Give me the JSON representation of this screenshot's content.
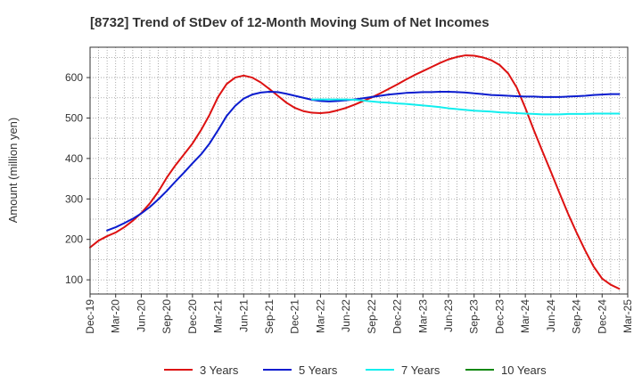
{
  "chart_data": {
    "type": "line",
    "title": "[8732]  Trend of StDev of 12-Month Moving Sum of Net Incomes",
    "ylabel": "Amount (million yen)",
    "xlabel": "",
    "ylim": [
      65,
      675
    ],
    "yticks": [
      100,
      200,
      300,
      400,
      500,
      600
    ],
    "x_tick_labels": [
      "Dec-19",
      "Mar-20",
      "Jun-20",
      "Sep-20",
      "Dec-20",
      "Mar-21",
      "Jun-21",
      "Sep-21",
      "Dec-21",
      "Mar-22",
      "Jun-22",
      "Sep-22",
      "Dec-22",
      "Mar-23",
      "Jun-23",
      "Sep-23",
      "Dec-23",
      "Mar-24",
      "Jun-24",
      "Sep-24",
      "Dec-24",
      "Mar-25"
    ],
    "grid": true,
    "legend_position": "bottom",
    "series": [
      {
        "name": "3 Years",
        "color": "#dd1111",
        "points": [
          [
            "Dec-19",
            180
          ],
          [
            "Jan-20",
            197
          ],
          [
            "Feb-20",
            208
          ],
          [
            "Mar-20",
            217
          ],
          [
            "Apr-20",
            230
          ],
          [
            "May-20",
            246
          ],
          [
            "Jun-20",
            265
          ],
          [
            "Jul-20",
            289
          ],
          [
            "Aug-20",
            318
          ],
          [
            "Sep-20",
            353
          ],
          [
            "Oct-20",
            383
          ],
          [
            "Nov-20",
            410
          ],
          [
            "Dec-20",
            437
          ],
          [
            "Jan-21",
            470
          ],
          [
            "Feb-21",
            508
          ],
          [
            "Mar-21",
            552
          ],
          [
            "Apr-21",
            584
          ],
          [
            "May-21",
            600
          ],
          [
            "Jun-21",
            605
          ],
          [
            "Jul-21",
            600
          ],
          [
            "Aug-21",
            588
          ],
          [
            "Sep-21",
            572
          ],
          [
            "Oct-21",
            555
          ],
          [
            "Nov-21",
            538
          ],
          [
            "Dec-21",
            525
          ],
          [
            "Jan-22",
            517
          ],
          [
            "Feb-22",
            513
          ],
          [
            "Mar-22",
            512
          ],
          [
            "Apr-22",
            514
          ],
          [
            "May-22",
            519
          ],
          [
            "Jun-22",
            525
          ],
          [
            "Jul-22",
            533
          ],
          [
            "Aug-22",
            542
          ],
          [
            "Sep-22",
            551
          ],
          [
            "Oct-22",
            561
          ],
          [
            "Nov-22",
            572
          ],
          [
            "Dec-22",
            583
          ],
          [
            "Jan-23",
            595
          ],
          [
            "Feb-23",
            606
          ],
          [
            "Mar-23",
            616
          ],
          [
            "Apr-23",
            626
          ],
          [
            "May-23",
            636
          ],
          [
            "Jun-23",
            645
          ],
          [
            "Jul-23",
            651
          ],
          [
            "Aug-23",
            655
          ],
          [
            "Sep-23",
            654
          ],
          [
            "Oct-23",
            650
          ],
          [
            "Nov-23",
            643
          ],
          [
            "Dec-23",
            631
          ],
          [
            "Jan-24",
            610
          ],
          [
            "Feb-24",
            575
          ],
          [
            "Mar-24",
            525
          ],
          [
            "Apr-24",
            470
          ],
          [
            "May-24",
            418
          ],
          [
            "Jun-24",
            367
          ],
          [
            "Jul-24",
            315
          ],
          [
            "Aug-24",
            264
          ],
          [
            "Sep-24",
            217
          ],
          [
            "Oct-24",
            173
          ],
          [
            "Nov-24",
            133
          ],
          [
            "Dec-24",
            103
          ],
          [
            "Jan-25",
            88
          ],
          [
            "Feb-25",
            78
          ]
        ]
      },
      {
        "name": "5 Years",
        "color": "#0b1ccf",
        "points": [
          [
            "Feb-20",
            222
          ],
          [
            "Mar-20",
            230
          ],
          [
            "Apr-20",
            240
          ],
          [
            "May-20",
            251
          ],
          [
            "Jun-20",
            264
          ],
          [
            "Jul-20",
            280
          ],
          [
            "Aug-20",
            299
          ],
          [
            "Sep-20",
            320
          ],
          [
            "Oct-20",
            343
          ],
          [
            "Nov-20",
            365
          ],
          [
            "Dec-20",
            388
          ],
          [
            "Jan-21",
            410
          ],
          [
            "Feb-21",
            437
          ],
          [
            "Mar-21",
            470
          ],
          [
            "Apr-21",
            505
          ],
          [
            "May-21",
            530
          ],
          [
            "Jun-21",
            548
          ],
          [
            "Jul-21",
            558
          ],
          [
            "Aug-21",
            563
          ],
          [
            "Sep-21",
            565
          ],
          [
            "Oct-21",
            564
          ],
          [
            "Nov-21",
            560
          ],
          [
            "Dec-21",
            555
          ],
          [
            "Jan-22",
            550
          ],
          [
            "Feb-22",
            545
          ],
          [
            "Mar-22",
            542
          ],
          [
            "Apr-22",
            541
          ],
          [
            "May-22",
            542
          ],
          [
            "Jun-22",
            544
          ],
          [
            "Jul-22",
            546
          ],
          [
            "Aug-22",
            549
          ],
          [
            "Sep-22",
            552
          ],
          [
            "Oct-22",
            555
          ],
          [
            "Nov-22",
            558
          ],
          [
            "Dec-22",
            560
          ],
          [
            "Jan-23",
            562
          ],
          [
            "Feb-23",
            563
          ],
          [
            "Mar-23",
            564
          ],
          [
            "Apr-23",
            564
          ],
          [
            "May-23",
            565
          ],
          [
            "Jun-23",
            565
          ],
          [
            "Jul-23",
            564
          ],
          [
            "Aug-23",
            563
          ],
          [
            "Sep-23",
            561
          ],
          [
            "Oct-23",
            559
          ],
          [
            "Nov-23",
            557
          ],
          [
            "Dec-23",
            556
          ],
          [
            "Jan-24",
            555
          ],
          [
            "Feb-24",
            554
          ],
          [
            "Mar-24",
            553
          ],
          [
            "Apr-24",
            553
          ],
          [
            "May-24",
            552
          ],
          [
            "Jun-24",
            552
          ],
          [
            "Jul-24",
            552
          ],
          [
            "Aug-24",
            553
          ],
          [
            "Sep-24",
            554
          ],
          [
            "Oct-24",
            555
          ],
          [
            "Nov-24",
            557
          ],
          [
            "Dec-24",
            558
          ],
          [
            "Jan-25",
            559
          ],
          [
            "Feb-25",
            559
          ]
        ]
      },
      {
        "name": "7 Years",
        "color": "#11eeee",
        "points": [
          [
            "Feb-22",
            546
          ],
          [
            "Mar-22",
            546
          ],
          [
            "Apr-22",
            546
          ],
          [
            "May-22",
            546
          ],
          [
            "Jun-22",
            546
          ],
          [
            "Jul-22",
            545
          ],
          [
            "Aug-22",
            543
          ],
          [
            "Sep-22",
            541
          ],
          [
            "Oct-22",
            539
          ],
          [
            "Nov-22",
            538
          ],
          [
            "Dec-22",
            536
          ],
          [
            "Jan-23",
            535
          ],
          [
            "Feb-23",
            533
          ],
          [
            "Mar-23",
            531
          ],
          [
            "Apr-23",
            529
          ],
          [
            "May-23",
            527
          ],
          [
            "Jun-23",
            524
          ],
          [
            "Jul-23",
            522
          ],
          [
            "Aug-23",
            520
          ],
          [
            "Sep-23",
            518
          ],
          [
            "Oct-23",
            517
          ],
          [
            "Nov-23",
            516
          ],
          [
            "Dec-23",
            514
          ],
          [
            "Jan-24",
            513
          ],
          [
            "Feb-24",
            512
          ],
          [
            "Mar-24",
            511
          ],
          [
            "Apr-24",
            510
          ],
          [
            "May-24",
            509
          ],
          [
            "Jun-24",
            509
          ],
          [
            "Jul-24",
            509
          ],
          [
            "Aug-24",
            510
          ],
          [
            "Sep-24",
            510
          ],
          [
            "Oct-24",
            510
          ],
          [
            "Nov-24",
            511
          ],
          [
            "Dec-24",
            511
          ],
          [
            "Jan-25",
            511
          ],
          [
            "Feb-25",
            511
          ]
        ]
      },
      {
        "name": "10 Years",
        "color": "#118811",
        "points": []
      }
    ]
  }
}
